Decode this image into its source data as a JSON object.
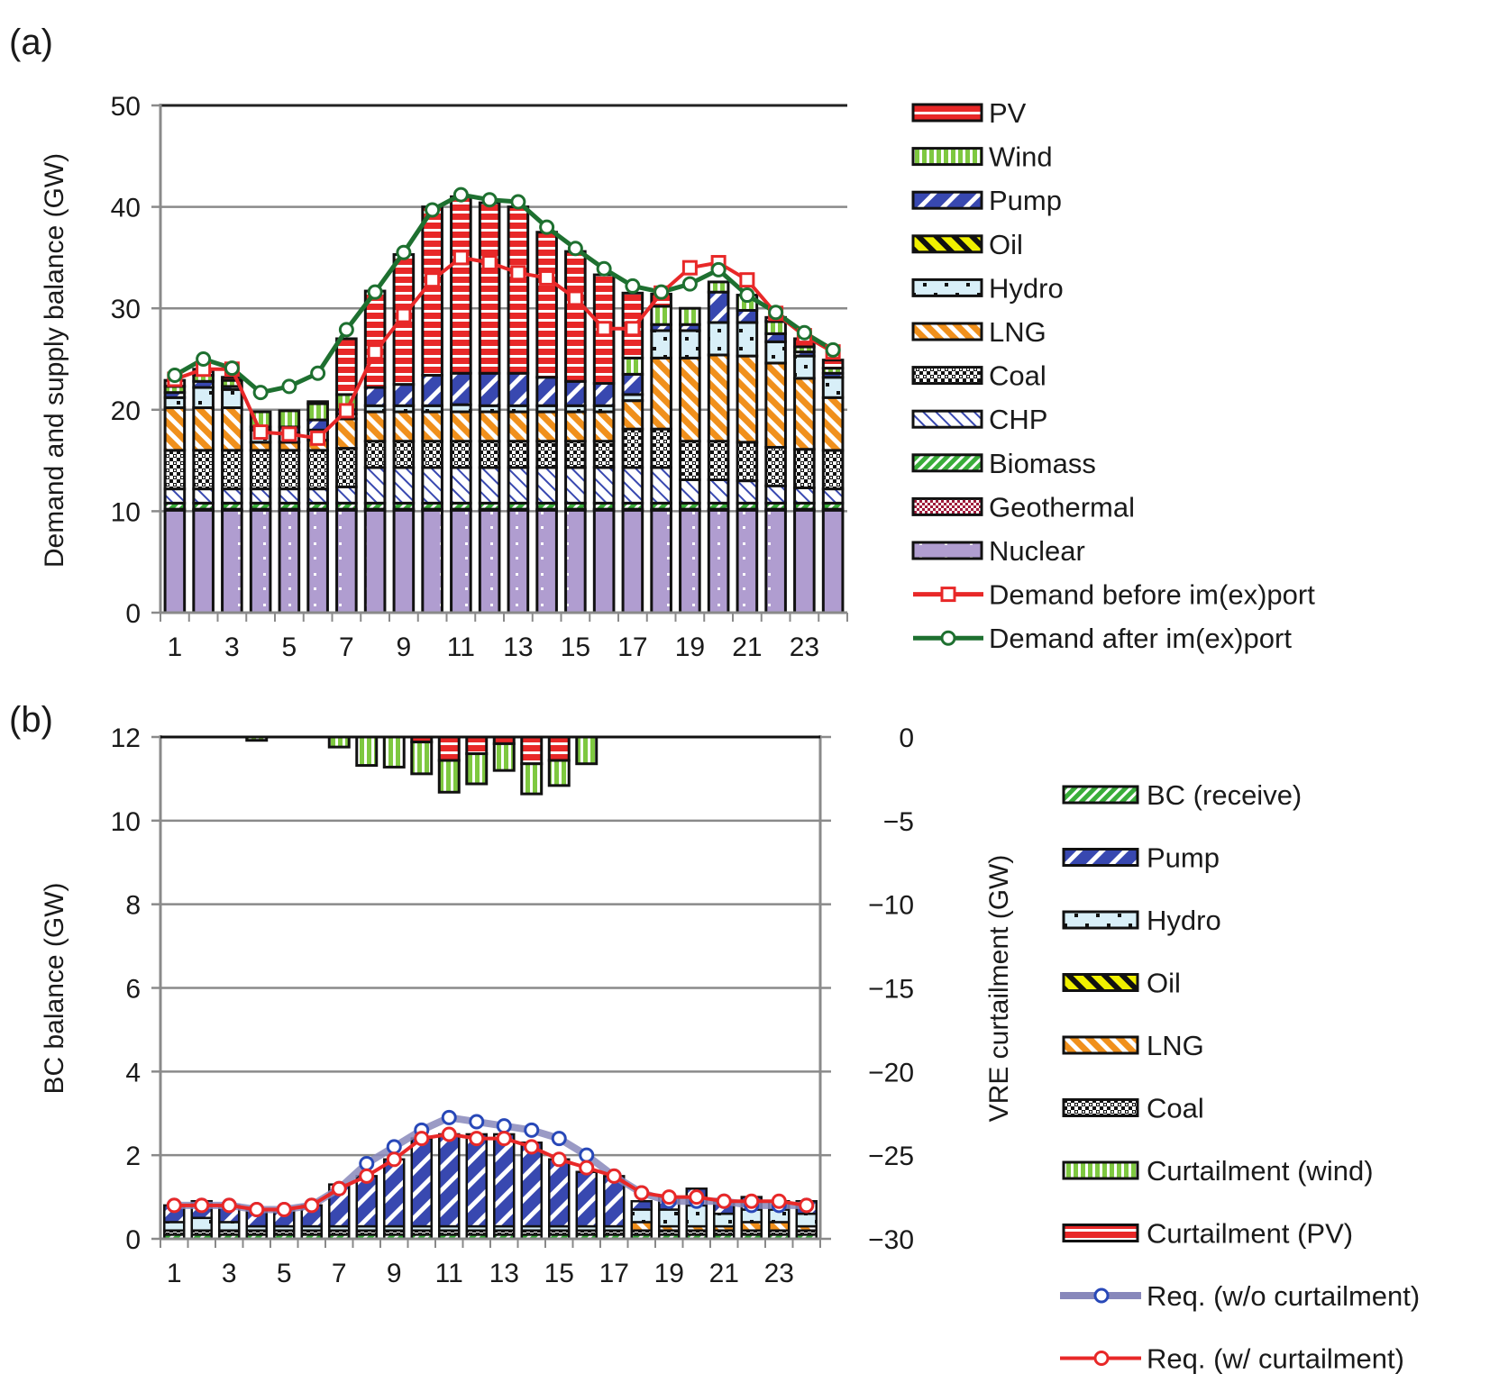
{
  "chart_data": [
    {
      "panel_label": "(a)",
      "type": "bar",
      "stacked": true,
      "title": "",
      "xlabel": "",
      "ylabel": "Demand and supply balance (GW)",
      "ylim": [
        0,
        50
      ],
      "yticks": [
        "0",
        "10",
        "20",
        "30",
        "40",
        "50"
      ],
      "ytick_values": [
        0,
        10,
        20,
        30,
        40,
        50
      ],
      "categories": [
        1,
        2,
        3,
        4,
        5,
        6,
        7,
        8,
        9,
        10,
        11,
        12,
        13,
        14,
        15,
        16,
        17,
        18,
        19,
        20,
        21,
        22,
        23,
        24
      ],
      "xtick_labels": [
        "1",
        "3",
        "5",
        "7",
        "9",
        "11",
        "13",
        "15",
        "17",
        "19",
        "21",
        "23"
      ],
      "grid": true,
      "legend_position": "right",
      "series": [
        {
          "name": "Nuclear",
          "key": "nuclear",
          "color": "#b09dd0",
          "pattern": "dots-white",
          "values": [
            10.1,
            10.1,
            10.1,
            10.1,
            10.1,
            10.1,
            10.1,
            10.1,
            10.1,
            10.1,
            10.1,
            10.1,
            10.1,
            10.1,
            10.1,
            10.1,
            10.1,
            10.1,
            10.1,
            10.1,
            10.1,
            10.1,
            10.1,
            10.1
          ]
        },
        {
          "name": "Geothermal",
          "key": "geothermal",
          "color": "#a01a3a",
          "pattern": "crosshatch",
          "values": [
            0.1,
            0.1,
            0.1,
            0.1,
            0.1,
            0.1,
            0.1,
            0.1,
            0.1,
            0.1,
            0.1,
            0.1,
            0.1,
            0.1,
            0.1,
            0.1,
            0.1,
            0.1,
            0.1,
            0.1,
            0.1,
            0.1,
            0.1,
            0.1
          ]
        },
        {
          "name": "Biomass",
          "key": "biomass",
          "color": "#3aae3a",
          "pattern": "diag-right",
          "values": [
            0.6,
            0.6,
            0.6,
            0.6,
            0.6,
            0.6,
            0.6,
            0.6,
            0.6,
            0.6,
            0.6,
            0.6,
            0.6,
            0.6,
            0.6,
            0.6,
            0.6,
            0.6,
            0.6,
            0.6,
            0.6,
            0.6,
            0.6,
            0.6
          ]
        },
        {
          "name": "CHP",
          "key": "chp",
          "color": "#3848b0",
          "pattern": "diag-left-thin",
          "values": [
            1.4,
            1.4,
            1.4,
            1.4,
            1.4,
            1.4,
            1.6,
            3.5,
            3.5,
            3.5,
            3.5,
            3.5,
            3.5,
            3.5,
            3.5,
            3.5,
            3.5,
            3.5,
            2.3,
            2.3,
            2.2,
            1.7,
            1.5,
            1.4
          ]
        },
        {
          "name": "Coal",
          "key": "coal",
          "color": "#111111",
          "pattern": "checker",
          "values": [
            3.8,
            3.8,
            3.8,
            3.8,
            3.8,
            3.8,
            3.8,
            2.6,
            2.6,
            2.6,
            2.6,
            2.6,
            2.6,
            2.6,
            2.6,
            2.6,
            3.8,
            3.8,
            3.8,
            3.8,
            3.8,
            3.8,
            3.8,
            3.8
          ]
        },
        {
          "name": "LNG",
          "key": "lng",
          "color": "#f0901c",
          "pattern": "diag-left",
          "values": [
            4.2,
            4.2,
            4.2,
            0.8,
            0.8,
            1.0,
            2.9,
            2.9,
            2.9,
            2.9,
            2.9,
            2.9,
            2.9,
            2.9,
            2.9,
            2.9,
            2.8,
            7.0,
            8.2,
            8.5,
            8.5,
            8.3,
            7.0,
            5.2
          ]
        },
        {
          "name": "Hydro",
          "key": "hydro",
          "color": "#d8eff8",
          "pattern": "dots-black",
          "values": [
            1.0,
            2.0,
            1.8,
            1.2,
            0.9,
            1.0,
            0.5,
            0.6,
            0.6,
            0.6,
            0.7,
            0.6,
            0.6,
            0.6,
            0.6,
            0.6,
            0.6,
            2.7,
            2.7,
            3.2,
            3.3,
            2.1,
            2.2,
            2.0
          ]
        },
        {
          "name": "Oil",
          "key": "oil",
          "color": "#f0f000",
          "pattern": "diag-left-black",
          "values": [
            0,
            0,
            0,
            0,
            0,
            0,
            0,
            0,
            0,
            0,
            0,
            0,
            0,
            0,
            0,
            0,
            0,
            0,
            0,
            0,
            0,
            0,
            0,
            0
          ]
        },
        {
          "name": "Pump",
          "key": "pump",
          "color": "#3848b0",
          "pattern": "diag-right",
          "values": [
            0.5,
            0.6,
            0.3,
            0.3,
            0.6,
            1.0,
            0.4,
            1.8,
            2.1,
            3.0,
            3.1,
            3.2,
            3.2,
            2.8,
            2.4,
            2.2,
            2.0,
            0.6,
            0.6,
            3.0,
            1.2,
            0.8,
            0.4,
            0.4
          ]
        },
        {
          "name": "Wind",
          "key": "wind",
          "color": "#7ec840",
          "pattern": "vstripes",
          "values": [
            0.6,
            0.6,
            0.6,
            1.5,
            1.6,
            1.6,
            1.5,
            0,
            0,
            0,
            0,
            0,
            0,
            0,
            0,
            0,
            1.6,
            1.8,
            1.6,
            1.0,
            1.5,
            1.2,
            0.5,
            0.5
          ]
        },
        {
          "name": "PV",
          "key": "pv",
          "color": "#e82828",
          "pattern": "hstripes",
          "values": [
            0.6,
            0.6,
            0.3,
            0,
            0,
            0.2,
            5.5,
            9.5,
            12.8,
            16.6,
            17.4,
            16.8,
            16.4,
            14.3,
            12.8,
            10.7,
            6.4,
            1.2,
            0,
            0,
            0,
            0.4,
            0.8,
            0.8
          ]
        }
      ],
      "lines": [
        {
          "name": "Demand before im(ex)port",
          "key": "demand_before",
          "color": "#e82828",
          "marker": "square",
          "values": [
            23.0,
            24.0,
            24.0,
            17.8,
            17.6,
            17.2,
            19.9,
            25.7,
            29.3,
            32.8,
            35.0,
            34.5,
            33.5,
            33.0,
            31.0,
            28.0,
            28.0,
            31.5,
            34.0,
            34.5,
            32.8,
            29.5,
            27.3,
            25.7
          ]
        },
        {
          "name": "Demand after im(ex)port",
          "key": "demand_after",
          "color": "#1e7030",
          "marker": "circle",
          "values": [
            23.4,
            25.0,
            24.1,
            21.7,
            22.3,
            23.6,
            27.9,
            31.6,
            35.5,
            39.7,
            41.2,
            40.7,
            40.5,
            38.0,
            35.9,
            33.9,
            32.2,
            31.6,
            32.4,
            33.8,
            31.3,
            29.6,
            27.6,
            25.9
          ]
        }
      ]
    },
    {
      "panel_label": "(b)",
      "type": "bar",
      "stacked": true,
      "title": "",
      "xlabel": "",
      "ylabel": "BC balance (GW)",
      "y2label": "VRE curtailment (GW)",
      "ylim": [
        0,
        12
      ],
      "y2lim": [
        -30,
        0
      ],
      "yticks": [
        "0",
        "2",
        "4",
        "6",
        "8",
        "10",
        "12"
      ],
      "ytick_values": [
        0,
        2,
        4,
        6,
        8,
        10,
        12
      ],
      "y2ticks": [
        "−30",
        "−25",
        "−20",
        "−15",
        "−10",
        "−5",
        "0"
      ],
      "y2tick_values": [
        -30,
        -25,
        -20,
        -15,
        -10,
        -5,
        0
      ],
      "categories": [
        1,
        2,
        3,
        4,
        5,
        6,
        7,
        8,
        9,
        10,
        11,
        12,
        13,
        14,
        15,
        16,
        17,
        18,
        19,
        20,
        21,
        22,
        23,
        24
      ],
      "xtick_labels": [
        "1",
        "3",
        "5",
        "7",
        "9",
        "11",
        "13",
        "15",
        "17",
        "19",
        "21",
        "23"
      ],
      "grid": true,
      "legend_position": "right",
      "series": [
        {
          "name": "BC (receive)",
          "key": "bc",
          "color": "#3aae3a",
          "pattern": "diag-right",
          "axis": "left",
          "values": [
            0.1,
            0.1,
            0.1,
            0.1,
            0.1,
            0.1,
            0.1,
            0.1,
            0.1,
            0.1,
            0.1,
            0.1,
            0.1,
            0.1,
            0.1,
            0.1,
            0.1,
            0.1,
            0.1,
            0.1,
            0.1,
            0.1,
            0.1,
            0.1
          ]
        },
        {
          "name": "Coal",
          "key": "coal",
          "color": "#111111",
          "pattern": "checker",
          "axis": "left",
          "values": [
            0.1,
            0.1,
            0.1,
            0.1,
            0.1,
            0.1,
            0.1,
            0.1,
            0.1,
            0.1,
            0.1,
            0.1,
            0.1,
            0.1,
            0.1,
            0.1,
            0.1,
            0.1,
            0.1,
            0.1,
            0.1,
            0.1,
            0.1,
            0.1
          ]
        },
        {
          "name": "LNG",
          "key": "lng",
          "color": "#f0901c",
          "pattern": "diag-left",
          "axis": "left",
          "values": [
            0,
            0,
            0,
            0,
            0,
            0,
            0,
            0,
            0,
            0,
            0,
            0,
            0,
            0,
            0,
            0,
            0,
            0.2,
            0.1,
            0.1,
            0.1,
            0.2,
            0.2,
            0.1
          ]
        },
        {
          "name": "Oil",
          "key": "oil",
          "color": "#f0f000",
          "pattern": "diag-left-black",
          "axis": "left",
          "values": [
            0,
            0,
            0,
            0,
            0,
            0,
            0,
            0,
            0,
            0,
            0,
            0,
            0,
            0,
            0,
            0,
            0,
            0,
            0,
            0,
            0,
            0,
            0,
            0
          ]
        },
        {
          "name": "Hydro",
          "key": "hydro",
          "color": "#d8eff8",
          "pattern": "dots-black",
          "axis": "left",
          "values": [
            0.2,
            0.3,
            0.2,
            0.1,
            0.1,
            0.1,
            0.1,
            0.1,
            0.1,
            0.1,
            0.1,
            0.1,
            0.1,
            0.1,
            0.1,
            0.1,
            0.1,
            0.3,
            0.4,
            0.5,
            0.3,
            0.3,
            0.3,
            0.3
          ]
        },
        {
          "name": "Pump",
          "key": "pump",
          "color": "#3848b0",
          "pattern": "diag-right",
          "axis": "left",
          "values": [
            0.4,
            0.4,
            0.4,
            0.4,
            0.4,
            0.5,
            1.0,
            1.2,
            1.6,
            2.1,
            2.2,
            2.2,
            2.2,
            2.0,
            1.6,
            1.3,
            1.2,
            0.2,
            0.3,
            0.4,
            0.3,
            0.3,
            0.2,
            0.3
          ]
        },
        {
          "name": "Curtailment (wind)",
          "key": "curt_wind",
          "color": "#7ec840",
          "pattern": "vstripes",
          "axis": "right",
          "values": [
            0,
            0,
            0,
            -0.2,
            0,
            0,
            -0.6,
            -1.7,
            -1.8,
            -1.9,
            -1.9,
            -1.8,
            -1.6,
            -1.8,
            -1.5,
            -1.6,
            0,
            0,
            0,
            0,
            0,
            0,
            0,
            0
          ]
        },
        {
          "name": "Curtailment (PV)",
          "key": "curt_pv",
          "color": "#e82828",
          "pattern": "hstripes",
          "axis": "right",
          "values": [
            0,
            0,
            0,
            0,
            0,
            0,
            0,
            0,
            0,
            -0.3,
            -1.4,
            -1.0,
            -0.4,
            -1.6,
            -1.4,
            0,
            0,
            0,
            0,
            0,
            0,
            0,
            0,
            0
          ]
        }
      ],
      "lines": [
        {
          "name": "Req. (w/o curtailment)",
          "key": "req_wo",
          "color": "#8888bb",
          "marker_color": "#2848b8",
          "marker": "circle",
          "values": [
            0.8,
            0.8,
            0.8,
            0.7,
            0.7,
            0.8,
            1.2,
            1.8,
            2.2,
            2.6,
            2.9,
            2.8,
            2.7,
            2.6,
            2.4,
            2.0,
            1.5,
            1.1,
            0.9,
            0.9,
            0.9,
            0.8,
            0.8,
            0.8
          ]
        },
        {
          "name": "Req. (w/ curtailment)",
          "key": "req_w",
          "color": "#e82828",
          "marker_color": "#e82828",
          "marker": "circle",
          "values": [
            0.8,
            0.8,
            0.8,
            0.7,
            0.7,
            0.8,
            1.2,
            1.5,
            1.9,
            2.4,
            2.5,
            2.4,
            2.4,
            2.2,
            1.9,
            1.7,
            1.5,
            1.1,
            1.0,
            1.0,
            0.9,
            0.9,
            0.9,
            0.8
          ]
        }
      ]
    }
  ],
  "legend_a": [
    "PV",
    "Wind",
    "Pump",
    "Oil",
    "Hydro",
    "LNG",
    "Coal",
    "CHP",
    "Biomass",
    "Geothermal",
    "Nuclear",
    "Demand before im(ex)port",
    "Demand after im(ex)port"
  ],
  "legend_b": [
    "BC (receive)",
    "Pump",
    "Hydro",
    "Oil",
    "LNG",
    "Coal",
    "Curtailment (wind)",
    "Curtailment (PV)",
    "Req. (w/o curtailment)",
    "Req. (w/ curtailment)"
  ]
}
